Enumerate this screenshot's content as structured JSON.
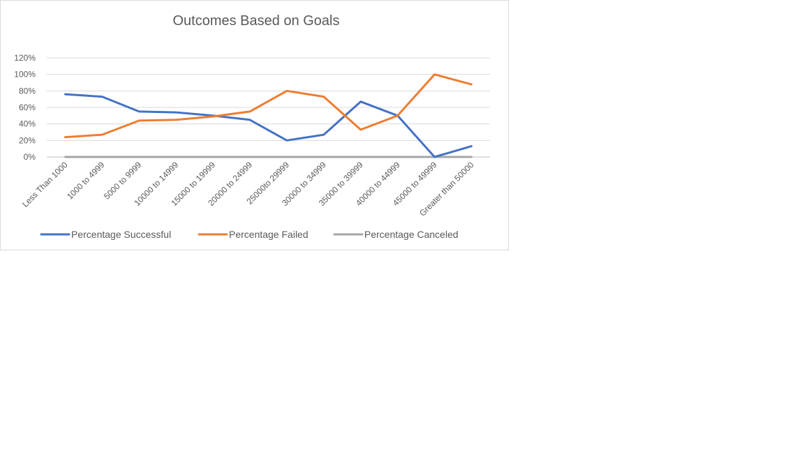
{
  "chart_data": {
    "type": "line",
    "title": "Outcomes Based on Goals",
    "categories": [
      "Less Than 1000",
      "1000 to 4999",
      "5000 to 9999",
      "10000 to 14999",
      "15000 to 19999",
      "20000 to 24999",
      "25000to 29999",
      "30000 to 34999",
      "35000 to 39999",
      "40000 to 44999",
      "45000 to 49999",
      "Greater than 50000"
    ],
    "y_ticks": [
      "0%",
      "20%",
      "40%",
      "60%",
      "80%",
      "100%",
      "120%"
    ],
    "ylim": [
      0,
      120
    ],
    "grid": true,
    "legend_position": "bottom",
    "series": [
      {
        "name": "Percentage Successful",
        "color": "#4472c4",
        "values": [
          76,
          73,
          55,
          54,
          50,
          45,
          20,
          27,
          67,
          50,
          0,
          13
        ]
      },
      {
        "name": "Percentage Failed",
        "color": "#ed7d31",
        "values": [
          24,
          27,
          44,
          45,
          49,
          55,
          80,
          73,
          33,
          50,
          100,
          88
        ]
      },
      {
        "name": "Percentage Canceled",
        "color": "#a5a5a5",
        "values": [
          0,
          0,
          0,
          0,
          0,
          0,
          0,
          0,
          0,
          0,
          0,
          0
        ]
      }
    ]
  }
}
